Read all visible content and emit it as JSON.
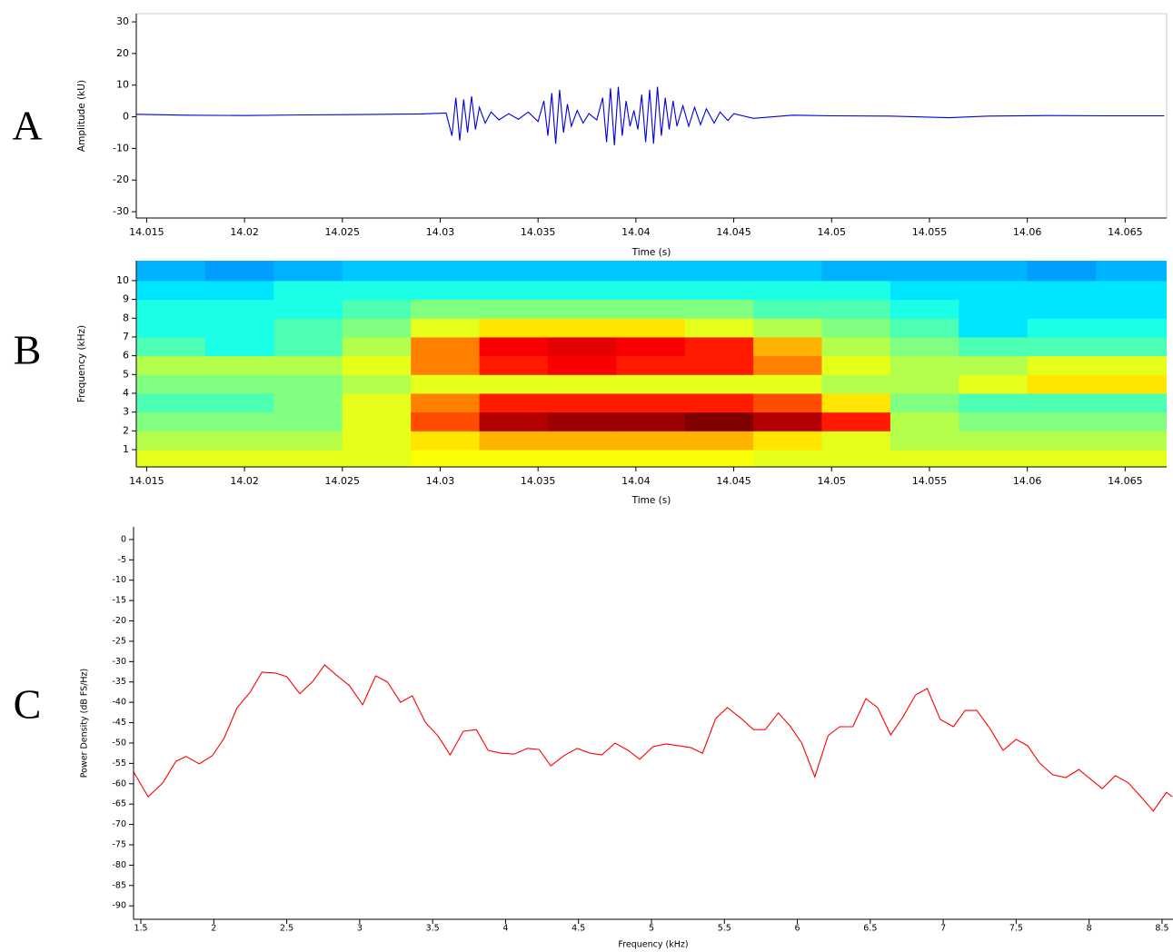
{
  "chart_data": [
    {
      "type": "line",
      "panel_label": "A",
      "x_label": "Time (s)",
      "y_label": "Amplitude (kU)",
      "color": "#0000dd",
      "xlim": [
        14.01447,
        14.06712
      ],
      "ylim": [
        -32,
        32.6
      ],
      "xticks": [
        14.015,
        14.02,
        14.025,
        14.03,
        14.035,
        14.04,
        14.045,
        14.05,
        14.055,
        14.06,
        14.065
      ],
      "yticks": [
        -30,
        -20,
        -10,
        0,
        10,
        20,
        30
      ],
      "x": [
        14.0145,
        14.017,
        14.02,
        14.023,
        14.026,
        14.029,
        14.0303,
        14.0306,
        14.0308,
        14.031,
        14.0312,
        14.0314,
        14.0316,
        14.0318,
        14.032,
        14.0323,
        14.0326,
        14.033,
        14.0335,
        14.034,
        14.0345,
        14.035,
        14.0353,
        14.0355,
        14.0357,
        14.0359,
        14.0361,
        14.0363,
        14.0365,
        14.0367,
        14.037,
        14.0373,
        14.0376,
        14.038,
        14.0383,
        14.0385,
        14.0387,
        14.0389,
        14.0391,
        14.0393,
        14.0395,
        14.0397,
        14.0399,
        14.0401,
        14.0403,
        14.0405,
        14.0407,
        14.0409,
        14.0411,
        14.0413,
        14.0415,
        14.0417,
        14.0419,
        14.0421,
        14.0424,
        14.0427,
        14.043,
        14.0433,
        14.0436,
        14.044,
        14.0443,
        14.0447,
        14.045,
        14.046,
        14.048,
        14.05,
        14.053,
        14.056,
        14.058,
        14.061,
        14.064,
        14.067
      ],
      "values": [
        0.8,
        0.5,
        0.4,
        0.6,
        0.7,
        0.9,
        1.2,
        -6,
        6,
        -7.5,
        5.5,
        -5,
        6.5,
        -4,
        3,
        -2,
        1.5,
        -1,
        1,
        -0.8,
        1.5,
        -1.5,
        5,
        -6,
        7.5,
        -8.5,
        8.5,
        -5,
        4,
        -3,
        2,
        -2,
        1,
        -1,
        6,
        -8,
        9,
        -9,
        9.5,
        -6,
        5,
        -3,
        2,
        -4,
        7,
        -8,
        8.5,
        -8.5,
        9.5,
        -6,
        6,
        -4,
        5,
        -3,
        3.5,
        -3,
        3,
        -2.5,
        2.5,
        -2,
        1.5,
        -1.2,
        1,
        -0.5,
        0.5,
        0.3,
        0.2,
        -0.3,
        0.2,
        0.4,
        0.3,
        0.3
      ]
    },
    {
      "type": "heatmap",
      "panel_label": "B",
      "x_label": "Time (s)",
      "y_label": "Frequency (kHz)",
      "xlim": [
        14.01447,
        14.06712
      ],
      "ylim": [
        0.08,
        11.06
      ],
      "xticks": [
        14.015,
        14.02,
        14.025,
        14.03,
        14.035,
        14.04,
        14.045,
        14.05,
        14.055,
        14.06,
        14.065
      ],
      "yticks": [
        1,
        2,
        3,
        4,
        5,
        6,
        7,
        8,
        9,
        10
      ],
      "x_bins": [
        14.0145,
        14.018,
        14.0215,
        14.025,
        14.0285,
        14.032,
        14.0355,
        14.039,
        14.0425,
        14.046,
        14.0495,
        14.053,
        14.0565,
        14.06,
        14.0635,
        14.0671
      ],
      "y_bins": [
        0.08,
        1,
        2,
        3,
        4,
        5,
        6,
        7,
        8,
        9,
        10,
        11.06
      ],
      "z": [
        [
          0.6,
          0.6,
          0.6,
          0.6,
          0.62,
          0.62,
          0.62,
          0.62,
          0.62,
          0.6,
          0.6,
          0.6,
          0.6,
          0.6,
          0.6
        ],
        [
          0.55,
          0.55,
          0.55,
          0.6,
          0.65,
          0.7,
          0.7,
          0.7,
          0.7,
          0.65,
          0.6,
          0.55,
          0.55,
          0.55,
          0.55
        ],
        [
          0.5,
          0.5,
          0.5,
          0.6,
          0.8,
          0.95,
          0.97,
          0.97,
          1.0,
          0.95,
          0.85,
          0.55,
          0.5,
          0.5,
          0.5
        ],
        [
          0.45,
          0.45,
          0.5,
          0.6,
          0.75,
          0.85,
          0.85,
          0.85,
          0.85,
          0.8,
          0.65,
          0.5,
          0.45,
          0.45,
          0.45
        ],
        [
          0.5,
          0.5,
          0.5,
          0.55,
          0.6,
          0.6,
          0.6,
          0.6,
          0.6,
          0.6,
          0.55,
          0.55,
          0.6,
          0.65,
          0.65
        ],
        [
          0.55,
          0.55,
          0.55,
          0.6,
          0.75,
          0.85,
          0.88,
          0.85,
          0.85,
          0.75,
          0.6,
          0.55,
          0.55,
          0.6,
          0.6
        ],
        [
          0.45,
          0.4,
          0.45,
          0.55,
          0.75,
          0.88,
          0.9,
          0.88,
          0.85,
          0.7,
          0.55,
          0.5,
          0.45,
          0.45,
          0.45
        ],
        [
          0.4,
          0.4,
          0.45,
          0.5,
          0.6,
          0.65,
          0.65,
          0.65,
          0.6,
          0.55,
          0.5,
          0.45,
          0.35,
          0.4,
          0.4
        ],
        [
          0.4,
          0.4,
          0.4,
          0.45,
          0.5,
          0.5,
          0.5,
          0.5,
          0.5,
          0.45,
          0.45,
          0.4,
          0.35,
          0.35,
          0.35
        ],
        [
          0.35,
          0.35,
          0.4,
          0.4,
          0.4,
          0.4,
          0.4,
          0.4,
          0.4,
          0.4,
          0.4,
          0.35,
          0.35,
          0.35,
          0.35
        ],
        [
          0.3,
          0.28,
          0.3,
          0.32,
          0.32,
          0.32,
          0.32,
          0.32,
          0.32,
          0.32,
          0.3,
          0.3,
          0.3,
          0.28,
          0.3
        ]
      ]
    },
    {
      "type": "line",
      "panel_label": "C",
      "x_label": "Frequency (kHz)",
      "y_label": "Power Density (dB FS/Hz)",
      "color": "#ff0000",
      "xlim": [
        1.45,
        8.575
      ],
      "ylim": [
        -93.3,
        3.1
      ],
      "xticks": [
        1.5,
        2,
        2.5,
        3,
        3.5,
        4,
        4.5,
        5,
        5.5,
        6,
        6.5,
        7,
        7.5,
        8,
        8.5
      ],
      "yticks": [
        0,
        -5,
        -10,
        -15,
        -20,
        -25,
        -30,
        -35,
        -40,
        -45,
        -50,
        -55,
        -60,
        -65,
        -70,
        -75,
        -80,
        -85,
        -90
      ],
      "x": [
        1.45,
        1.55,
        1.65,
        1.74,
        1.81,
        1.9,
        1.99,
        2.07,
        2.16,
        2.25,
        2.33,
        2.42,
        2.5,
        2.59,
        2.68,
        2.76,
        2.84,
        2.93,
        3.02,
        3.11,
        3.19,
        3.28,
        3.36,
        3.45,
        3.54,
        3.62,
        3.71,
        3.8,
        3.88,
        3.97,
        4.06,
        4.15,
        4.23,
        4.31,
        4.4,
        4.49,
        4.58,
        4.66,
        4.75,
        4.84,
        4.92,
        5.01,
        5.1,
        5.19,
        5.27,
        5.35,
        5.44,
        5.52,
        5.61,
        5.7,
        5.78,
        5.87,
        5.95,
        6.03,
        6.12,
        6.21,
        6.29,
        6.38,
        6.47,
        6.55,
        6.64,
        6.72,
        6.81,
        6.89,
        6.98,
        7.07,
        7.15,
        7.23,
        7.32,
        7.41,
        7.5,
        7.58,
        7.66,
        7.75,
        7.84,
        7.93,
        8.01,
        8.09,
        8.18,
        8.27,
        8.36,
        8.44,
        8.53,
        8.57
      ],
      "values": [
        -57.1,
        -63.2,
        -59.8,
        -54.5,
        -53.3,
        -55.1,
        -53.1,
        -48.9,
        -41.3,
        -37.5,
        -32.6,
        -32.8,
        -33.7,
        -37.9,
        -34.8,
        -30.8,
        -33.3,
        -35.9,
        -40.6,
        -33.5,
        -35,
        -40,
        -38.4,
        -44.9,
        -48.4,
        -52.9,
        -47.1,
        -46.7,
        -51.8,
        -52.5,
        -52.7,
        -51.3,
        -51.6,
        -55.6,
        -53.1,
        -51.3,
        -52.5,
        -52.9,
        -50,
        -51.8,
        -54,
        -50.9,
        -50.2,
        -50.7,
        -51.1,
        -52.5,
        -44,
        -41.3,
        -43.8,
        -46.7,
        -46.7,
        -42.6,
        -45.8,
        -50,
        -58.3,
        -48.2,
        -46,
        -46,
        -39.1,
        -41.3,
        -48,
        -43.8,
        -38.2,
        -36.6,
        -44.2,
        -46,
        -42,
        -42,
        -46.4,
        -51.8,
        -49.1,
        -50.7,
        -54.9,
        -57.8,
        -58.5,
        -56.5,
        -58.9,
        -61.2,
        -58,
        -59.8,
        -63.4,
        -66.7,
        -62.1,
        -63.2
      ]
    }
  ]
}
